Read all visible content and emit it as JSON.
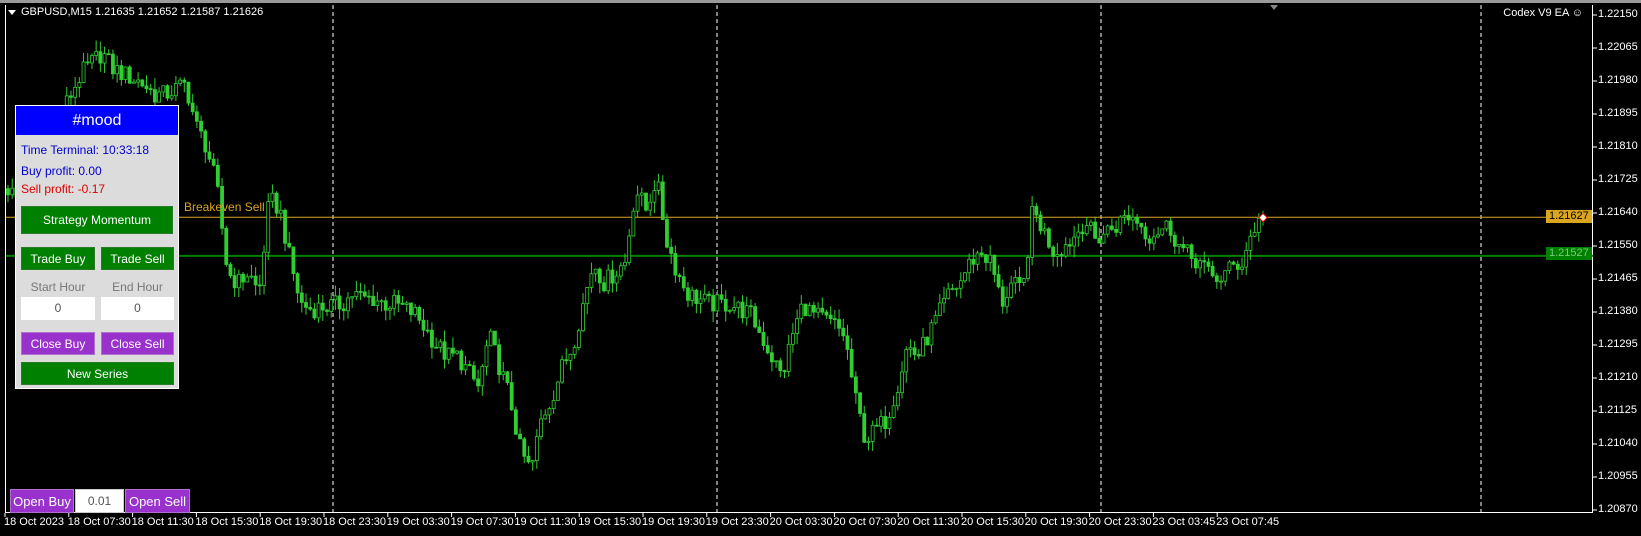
{
  "header": {
    "symbol_line": "GBPUSD,M15  1.21635 1.21652 1.21587 1.21626",
    "ea_name": "Codex V9 EA",
    "ea_icon": "smiley-icon"
  },
  "price_axis": [
    "1.22150",
    "1.22065",
    "1.21980",
    "1.21895",
    "1.21810",
    "1.21725",
    "1.21640",
    "1.21550",
    "1.21465",
    "1.21380",
    "1.21295",
    "1.21210",
    "1.21125",
    "1.21040",
    "1.20955",
    "1.20870"
  ],
  "time_axis": [
    "18 Oct 2023",
    "18 Oct 07:30",
    "18 Oct 11:30",
    "18 Oct 15:30",
    "18 Oct 19:30",
    "18 Oct 23:30",
    "19 Oct 03:30",
    "19 Oct 07:30",
    "19 Oct 11:30",
    "19 Oct 15:30",
    "19 Oct 19:30",
    "19 Oct 23:30",
    "20 Oct 03:30",
    "20 Oct 07:30",
    "20 Oct 11:30",
    "20 Oct 15:30",
    "20 Oct 19:30",
    "20 Oct 23:30",
    "23 Oct 03:45",
    "23 Oct 07:45"
  ],
  "lines": {
    "breakeven": {
      "label": "Breakeven Sell",
      "price": "1.21627",
      "color": "#daa520"
    },
    "green": {
      "price": "1.21527",
      "color": "#008000"
    }
  },
  "panel": {
    "title": "#mood",
    "time_terminal": "Time Terminal: 10:33:18",
    "buy_profit": "Buy profit: 0.00",
    "sell_profit": "Sell profit: -0.17",
    "strategy_button": "Strategy Momentum",
    "trade_buy": "Trade Buy",
    "trade_sell": "Trade Sell",
    "start_hour_label": "Start Hour",
    "end_hour_label": "End Hour",
    "start_hour": "0",
    "end_hour": "0",
    "close_buy": "Close Buy",
    "close_sell": "Close Sell",
    "new_series": "New Series"
  },
  "order_bar": {
    "open_buy": "Open Buy",
    "lot": "0.01",
    "open_sell": "Open Sell"
  },
  "colors": {
    "candle": "#32cd32",
    "background": "#000000",
    "panel_header": "#0000ff",
    "button_green": "#008000",
    "button_purple": "#9932cc"
  },
  "chart_data": {
    "type": "candlestick",
    "symbol": "GBPUSD",
    "timeframe": "M15",
    "ylim": [
      1.2087,
      1.2215
    ],
    "grid": false,
    "closes_approx": [
      1.21701,
      1.21674,
      1.21728,
      1.21782,
      1.21836,
      1.2189,
      1.21944,
      1.21998,
      1.22026,
      1.22053,
      1.22012,
      1.21998,
      1.21985,
      1.21971,
      1.21944,
      1.21944,
      1.21958,
      1.21971,
      1.21863,
      1.21809,
      1.21701,
      1.21484,
      1.21457,
      1.21484,
      1.2143,
      1.21674,
      1.21647,
      1.21511,
      1.21403,
      1.2139,
      1.21395,
      1.21398,
      1.21403,
      1.2143,
      1.21417,
      1.21417,
      1.21403,
      1.21403,
      1.2139,
      1.21376,
      1.21336,
      1.21295,
      1.21268,
      1.21268,
      1.21227,
      1.21187,
      1.21322,
      1.2124,
      1.2116,
      1.21024,
      1.2097,
      1.21105,
      1.2116,
      1.21241,
      1.21295,
      1.21403,
      1.21511,
      1.21457,
      1.21484,
      1.21511,
      1.21701,
      1.21647,
      1.21728,
      1.21566,
      1.21484,
      1.2143,
      1.21417,
      1.21403,
      1.21403,
      1.21403,
      1.2139,
      1.21376,
      1.21322,
      1.21268,
      1.21214,
      1.21322,
      1.21403,
      1.21376,
      1.21363,
      1.21349,
      1.21322,
      1.2116,
      1.21051,
      1.21078,
      1.21105,
      1.21187,
      1.21295,
      1.21268,
      1.21322,
      1.21376,
      1.2143,
      1.21457,
      1.21511,
      1.21538,
      1.21511,
      1.21403,
      1.21457,
      1.2143,
      1.21647,
      1.21593,
      1.21538,
      1.21552,
      1.21579,
      1.2162,
      1.21566,
      1.21593,
      1.21606,
      1.21633,
      1.2162,
      1.21579,
      1.21593,
      1.21606,
      1.21552,
      1.21525,
      1.21511,
      1.21471,
      1.21471,
      1.21498,
      1.21511,
      1.21593,
      1.21626
    ]
  }
}
